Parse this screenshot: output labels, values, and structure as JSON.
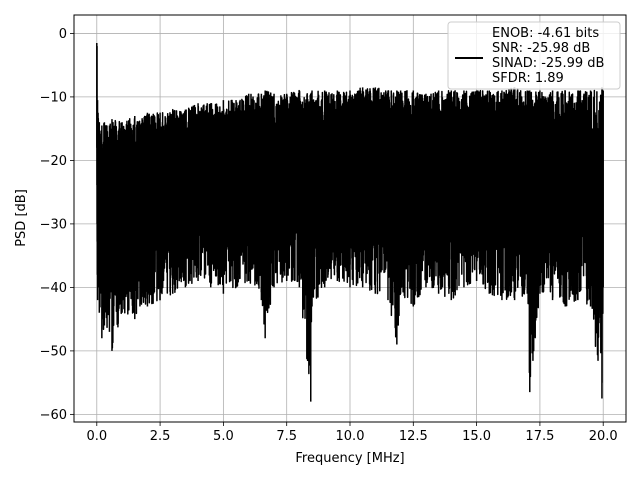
{
  "chart_data": {
    "type": "line",
    "xlabel": "Frequency [MHz]",
    "ylabel": "PSD [dB]",
    "xlim": [
      -0.9,
      20.9
    ],
    "ylim": [
      -61.2,
      2.9
    ],
    "xticks": [
      0.0,
      2.5,
      5.0,
      7.5,
      10.0,
      12.5,
      15.0,
      17.5,
      20.0
    ],
    "xtick_labels": [
      "0.0",
      "2.5",
      "5.0",
      "7.5",
      "10.0",
      "12.5",
      "15.0",
      "17.5",
      "20.0"
    ],
    "yticks": [
      0,
      -10,
      -20,
      -30,
      -40,
      -50,
      -60
    ],
    "ytick_labels": [
      "0",
      "−10",
      "−20",
      "−30",
      "−40",
      "−50",
      "−60"
    ],
    "grid": true,
    "legend": {
      "position": "top-right",
      "lines": [
        "ENOB: -4.61 bits",
        "SNR: -25.98 dB",
        "SINAD: -25.99 dB",
        "SFDR: 1.89"
      ]
    },
    "series": [
      {
        "color": "#000000",
        "x": [
          0.0,
          0.01,
          0.02,
          0.03,
          0.05,
          0.1,
          0.2,
          0.3,
          0.5,
          0.6,
          1.0,
          1.5,
          2.0,
          2.5,
          3.0,
          3.5,
          4.0,
          4.5,
          5.0,
          5.5,
          6.0,
          6.5,
          6.65,
          7.0,
          7.5,
          8.0,
          8.45,
          8.5,
          9.0,
          9.5,
          10.0,
          10.5,
          11.0,
          11.5,
          11.85,
          12.0,
          12.5,
          13.0,
          13.5,
          14.0,
          14.5,
          15.0,
          15.5,
          16.0,
          16.5,
          17.0,
          17.1,
          17.5,
          18.0,
          18.5,
          19.0,
          19.5,
          19.95,
          20.0
        ],
        "upper": [
          -1.5,
          -2.0,
          -12.0,
          -10.5,
          -12.5,
          -14.0,
          -14.5,
          -14.0,
          -14.5,
          -13.5,
          -14.0,
          -13.0,
          -12.5,
          -12.5,
          -12.0,
          -12.0,
          -11.0,
          -11.0,
          -10.5,
          -10.5,
          -9.5,
          -9.5,
          -9.0,
          -9.5,
          -9.5,
          -9.0,
          -9.5,
          -9.0,
          -9.0,
          -9.0,
          -9.0,
          -8.5,
          -8.5,
          -9.0,
          -9.0,
          -9.0,
          -9.0,
          -9.5,
          -9.0,
          -9.0,
          -9.0,
          -9.0,
          -9.0,
          -9.0,
          -8.5,
          -9.0,
          -9.0,
          -9.0,
          -9.0,
          -9.0,
          -9.0,
          -9.0,
          -8.5,
          -9.0
        ],
        "lower": [
          -18.0,
          -30.0,
          -38.0,
          -42.0,
          -40.0,
          -44.0,
          -48.0,
          -46.0,
          -47.0,
          -50.0,
          -44.0,
          -45.0,
          -43.0,
          -42.0,
          -41.0,
          -40.0,
          -39.0,
          -40.0,
          -41.0,
          -40.0,
          -39.0,
          -42.0,
          -48.0,
          -40.0,
          -39.0,
          -40.0,
          -58.0,
          -43.0,
          -40.0,
          -39.0,
          -40.0,
          -40.0,
          -41.0,
          -42.0,
          -49.0,
          -41.0,
          -43.0,
          -40.0,
          -41.0,
          -42.0,
          -40.0,
          -39.0,
          -41.0,
          -42.0,
          -42.0,
          -41.0,
          -56.5,
          -41.0,
          -42.0,
          -43.0,
          -42.0,
          -43.0,
          -57.5,
          -40.0
        ]
      }
    ]
  }
}
